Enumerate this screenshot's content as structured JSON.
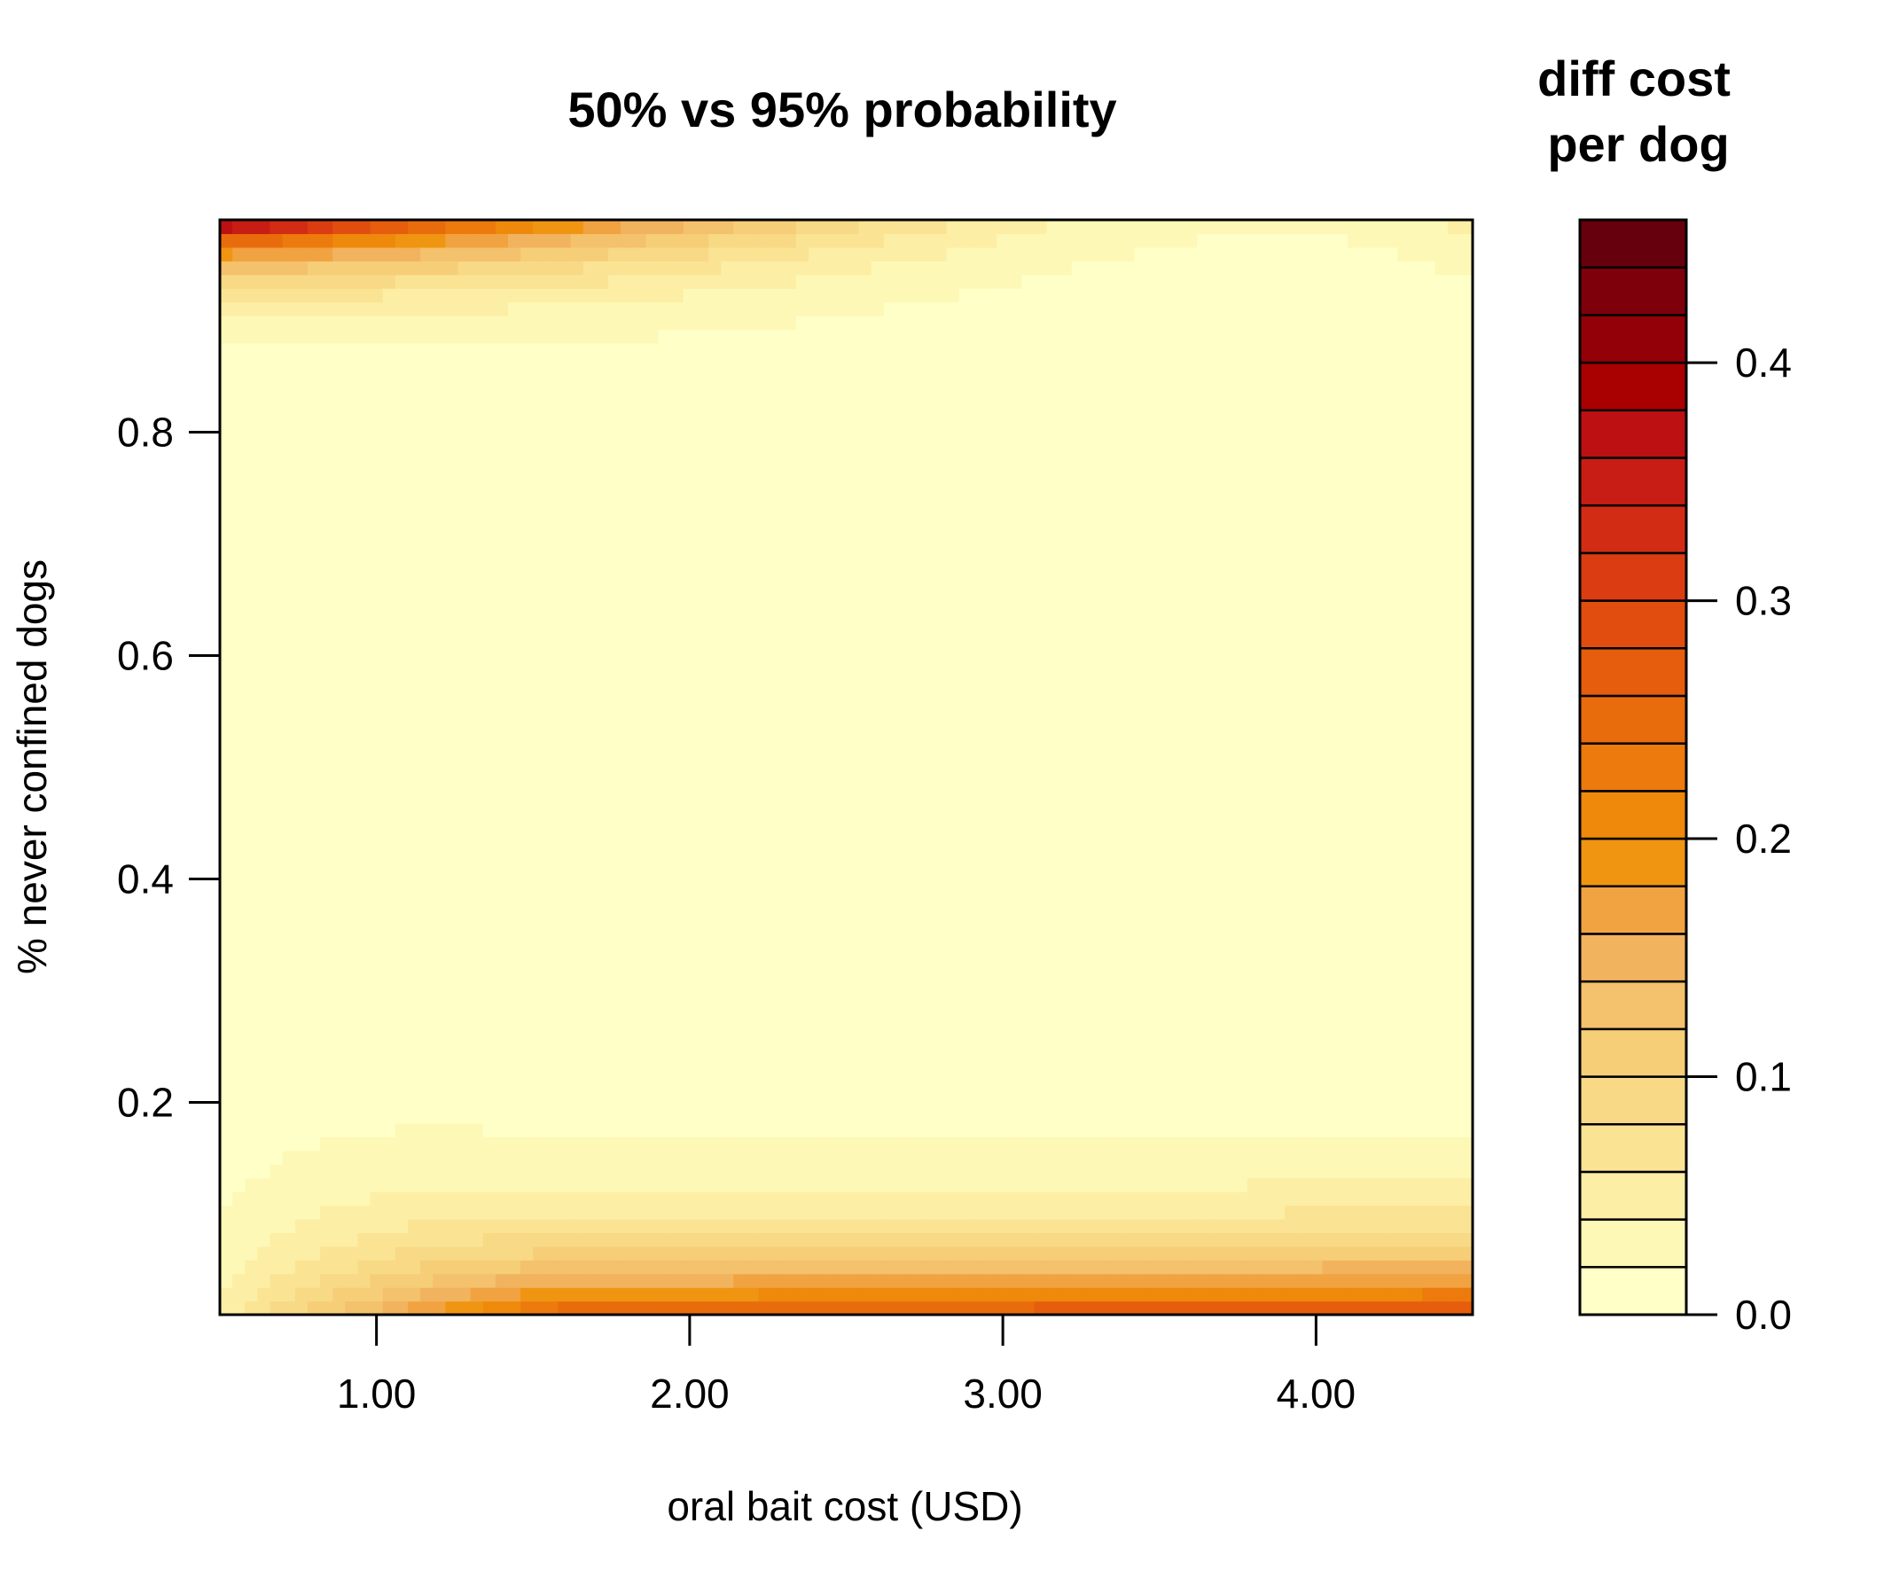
{
  "chart_data": {
    "type": "heatmap",
    "title": "50% vs 95% probability",
    "xlabel": "oral bait cost (USD)",
    "ylabel": "% never confined dogs",
    "xlim": [
      0.5,
      4.5
    ],
    "ylim": [
      0.01,
      0.99
    ],
    "x_ticks": [
      1.0,
      2.0,
      3.0,
      4.0
    ],
    "x_tick_labels": [
      "1.00",
      "2.00",
      "3.00",
      "4.00"
    ],
    "y_ticks": [
      0.2,
      0.4,
      0.6,
      0.8
    ],
    "y_tick_labels": [
      "0.2",
      "0.4",
      "0.6",
      "0.8"
    ],
    "grid": false,
    "legend": {
      "title_lines": [
        "diff cost",
        "per dog"
      ],
      "placement": "right",
      "range": [
        0.0,
        0.46
      ],
      "levels": 23,
      "ticks": [
        0.0,
        0.1,
        0.2,
        0.3,
        0.4
      ],
      "tick_labels": [
        "0.0",
        "0.1",
        "0.2",
        "0.3",
        "0.4"
      ],
      "colors": [
        "#FFFFC8",
        "#FEF8B7",
        "#FCEEA4",
        "#FAE494",
        "#F8D986",
        "#F6CE78",
        "#F4C16C",
        "#F2B35E",
        "#F1A342",
        "#F09511",
        "#EE890C",
        "#EC7A0C",
        "#E96C0C",
        "#E55D0D",
        "#E14D0F",
        "#DB3C11",
        "#D32C14",
        "#C81D14",
        "#BC1012",
        "#A90002",
        "#930008",
        "#7D000B",
        "#67000D"
      ]
    },
    "surface_samples": [
      {
        "x": 0.5,
        "y": 0.98,
        "value": 0.44
      },
      {
        "x": 1.5,
        "y": 0.98,
        "value": 0.27
      },
      {
        "x": 2.5,
        "y": 0.98,
        "value": 0.14
      },
      {
        "x": 3.5,
        "y": 0.98,
        "value": 0.02
      },
      {
        "x": 4.5,
        "y": 0.97,
        "value": 0.04
      },
      {
        "x": 1.0,
        "y": 0.9,
        "value": 0.12
      },
      {
        "x": 2.5,
        "y": 0.5,
        "value": 0.0
      },
      {
        "x": 0.5,
        "y": 0.05,
        "value": 0.05
      },
      {
        "x": 1.5,
        "y": 0.02,
        "value": 0.24
      },
      {
        "x": 3.0,
        "y": 0.02,
        "value": 0.22
      },
      {
        "x": 4.4,
        "y": 0.02,
        "value": 0.26
      }
    ]
  }
}
